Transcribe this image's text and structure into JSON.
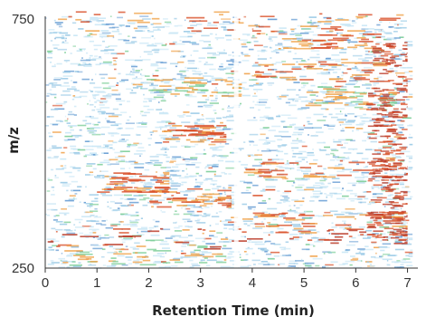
{
  "chart_data": {
    "type": "heatmap",
    "title": "",
    "xlabel": "Retention Time (min)",
    "ylabel": "m/z",
    "xlim": [
      0,
      7.2
    ],
    "ylim": [
      250,
      750
    ],
    "x_ticks": [
      "0",
      "1",
      "2",
      "3",
      "4",
      "5",
      "6",
      "7"
    ],
    "y_ticks": [
      "250",
      "750"
    ],
    "background": "#ffffff",
    "palette": [
      "#c8e6f5",
      "#9ccbe6",
      "#6a9fd4",
      "#7fcf9a",
      "#f0a24a",
      "#d9512a",
      "#b8321e"
    ],
    "gap_at_x": 3.7,
    "strong_bands": [
      {
        "x0": 2.0,
        "x1": 3.6,
        "mz": 390,
        "level": 5
      },
      {
        "x0": 1.0,
        "x1": 2.4,
        "mz": 420,
        "level": 5
      },
      {
        "x0": 2.2,
        "x1": 3.5,
        "mz": 520,
        "level": 5
      },
      {
        "x0": 4.0,
        "x1": 6.8,
        "mz": 640,
        "level": 5
      },
      {
        "x0": 5.0,
        "x1": 6.8,
        "mz": 590,
        "level": 4
      },
      {
        "x0": 3.8,
        "x1": 6.8,
        "mz": 450,
        "level": 5
      },
      {
        "x0": 3.8,
        "x1": 7.0,
        "mz": 340,
        "level": 5
      },
      {
        "x0": 0.0,
        "x1": 7.0,
        "mz": 308,
        "level": 6
      },
      {
        "x0": 0.3,
        "x1": 3.5,
        "mz": 275,
        "level": 4
      },
      {
        "x0": 0.0,
        "x1": 7.0,
        "mz": 740,
        "level": 5
      },
      {
        "x0": 1.8,
        "x1": 3.8,
        "mz": 610,
        "level": 4
      },
      {
        "x0": 4.5,
        "x1": 6.5,
        "mz": 705,
        "level": 5
      }
    ],
    "dense_region": {
      "x0": 6.2,
      "x1": 7.0,
      "mz0": 300,
      "mz1": 700,
      "level": 6
    }
  }
}
